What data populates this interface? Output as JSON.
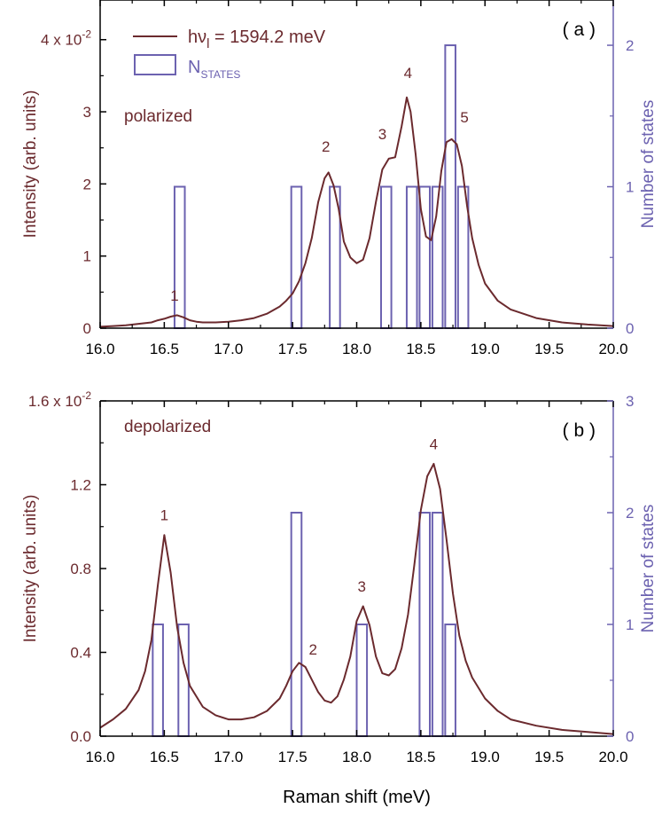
{
  "colors": {
    "curve": "#6b2a2e",
    "bars": "#6c62b0",
    "axis": "#000000"
  },
  "chart_data": [
    {
      "type": "line",
      "panel_label": "( a )",
      "annotation": "polarized",
      "legend": {
        "line_label_main": "hν",
        "line_label_sub": "l",
        "line_label_rest": " = 1594.2 meV",
        "bar_label_main": "N",
        "bar_label_sub": "STATES"
      },
      "xlabel": "",
      "ylabel": "Intensity (arb. units)",
      "ylabel_right": "Number of states",
      "xlim": [
        16.0,
        20.0
      ],
      "ylim": [
        0,
        0.0455
      ],
      "ylim_right": [
        0,
        2.32
      ],
      "x_ticks": [
        "16.0",
        "16.5",
        "17.0",
        "17.5",
        "18.0",
        "18.5",
        "19.0",
        "19.5",
        "20.0"
      ],
      "y_ticks": [
        "0",
        "1",
        "2",
        "3"
      ],
      "y_top_tick": {
        "mantissa": "4 x 10",
        "exponent": "-2",
        "value": 0.04
      },
      "y_ticks_right": [
        "0",
        "1",
        "2"
      ],
      "series": [
        {
          "name": "intensity",
          "x": [
            16.0,
            16.1,
            16.2,
            16.3,
            16.4,
            16.45,
            16.5,
            16.55,
            16.6,
            16.65,
            16.7,
            16.75,
            16.8,
            16.9,
            17.0,
            17.1,
            17.2,
            17.3,
            17.4,
            17.45,
            17.5,
            17.55,
            17.6,
            17.65,
            17.7,
            17.75,
            17.78,
            17.82,
            17.86,
            17.9,
            17.95,
            18.0,
            18.05,
            18.1,
            18.15,
            18.2,
            18.25,
            18.3,
            18.35,
            18.39,
            18.42,
            18.46,
            18.5,
            18.54,
            18.58,
            18.62,
            18.66,
            18.7,
            18.74,
            18.78,
            18.82,
            18.86,
            18.9,
            18.95,
            19.0,
            19.1,
            19.2,
            19.4,
            19.6,
            19.8,
            20.0
          ],
          "y": [
            0.0002,
            0.0003,
            0.0004,
            0.0006,
            0.0008,
            0.0011,
            0.0013,
            0.0016,
            0.0018,
            0.0015,
            0.0011,
            0.0009,
            0.0008,
            0.0008,
            0.0009,
            0.0011,
            0.0014,
            0.002,
            0.003,
            0.0038,
            0.0048,
            0.0065,
            0.009,
            0.0125,
            0.0175,
            0.0208,
            0.0216,
            0.0198,
            0.0165,
            0.012,
            0.0098,
            0.009,
            0.0095,
            0.0125,
            0.0175,
            0.022,
            0.0235,
            0.0237,
            0.028,
            0.032,
            0.03,
            0.024,
            0.0165,
            0.0127,
            0.0122,
            0.0155,
            0.0218,
            0.0258,
            0.0262,
            0.0255,
            0.0225,
            0.017,
            0.0125,
            0.0088,
            0.0062,
            0.0038,
            0.0026,
            0.0014,
            0.0008,
            0.0005,
            0.0003
          ]
        }
      ],
      "peak_labels": [
        {
          "text": "1",
          "x": 16.58,
          "y": 0.0038
        },
        {
          "text": "2",
          "x": 17.76,
          "y": 0.0245
        },
        {
          "text": "3",
          "x": 18.2,
          "y": 0.0262
        },
        {
          "text": "4",
          "x": 18.4,
          "y": 0.0347
        },
        {
          "text": "5",
          "x": 18.84,
          "y": 0.0285
        }
      ],
      "bars": [
        {
          "x1": 16.58,
          "x2": 16.66,
          "n": 1
        },
        {
          "x1": 17.49,
          "x2": 17.57,
          "n": 1
        },
        {
          "x1": 17.79,
          "x2": 17.87,
          "n": 1
        },
        {
          "x1": 18.19,
          "x2": 18.27,
          "n": 1
        },
        {
          "x1": 18.39,
          "x2": 18.47,
          "n": 1
        },
        {
          "x1": 18.49,
          "x2": 18.57,
          "n": 1
        },
        {
          "x1": 18.59,
          "x2": 18.67,
          "n": 1
        },
        {
          "x1": 18.69,
          "x2": 18.77,
          "n": 2
        },
        {
          "x1": 18.79,
          "x2": 18.87,
          "n": 1
        }
      ]
    },
    {
      "type": "line",
      "panel_label": "( b )",
      "annotation": "depolarized",
      "xlabel": "Raman shift (meV)",
      "ylabel": "Intensity (arb. units)",
      "ylabel_right": "Number of states",
      "xlim": [
        16.0,
        20.0
      ],
      "ylim": [
        0,
        0.016
      ],
      "ylim_right": [
        0,
        3.0
      ],
      "x_ticks": [
        "16.0",
        "16.5",
        "17.0",
        "17.5",
        "18.0",
        "18.5",
        "19.0",
        "19.5",
        "20.0"
      ],
      "y_ticks": [
        "0.0",
        "0.4",
        "0.8",
        "1.2"
      ],
      "y_top_tick": {
        "mantissa": "1.6 x 10",
        "exponent": "-2",
        "value": 0.016
      },
      "y_ticks_right": [
        "0",
        "1",
        "2",
        "3"
      ],
      "series": [
        {
          "name": "intensity",
          "x": [
            16.0,
            16.1,
            16.2,
            16.3,
            16.35,
            16.4,
            16.45,
            16.5,
            16.55,
            16.6,
            16.65,
            16.7,
            16.8,
            16.9,
            17.0,
            17.1,
            17.2,
            17.3,
            17.4,
            17.45,
            17.5,
            17.55,
            17.6,
            17.65,
            17.7,
            17.75,
            17.8,
            17.85,
            17.9,
            17.95,
            18.0,
            18.05,
            18.1,
            18.15,
            18.2,
            18.25,
            18.3,
            18.35,
            18.4,
            18.45,
            18.5,
            18.55,
            18.6,
            18.65,
            18.7,
            18.75,
            18.8,
            18.85,
            18.9,
            19.0,
            19.1,
            19.2,
            19.4,
            19.6,
            19.8,
            20.0
          ],
          "y": [
            0.0004,
            0.0008,
            0.0013,
            0.0022,
            0.0031,
            0.0046,
            0.0072,
            0.0096,
            0.0078,
            0.0052,
            0.0035,
            0.0024,
            0.0014,
            0.001,
            0.0008,
            0.0008,
            0.0009,
            0.0012,
            0.0018,
            0.0024,
            0.0031,
            0.0035,
            0.0033,
            0.0027,
            0.0021,
            0.0017,
            0.0016,
            0.0019,
            0.0027,
            0.0038,
            0.0055,
            0.0062,
            0.0053,
            0.0038,
            0.003,
            0.0029,
            0.0032,
            0.0042,
            0.0058,
            0.0082,
            0.0108,
            0.0124,
            0.013,
            0.0118,
            0.0094,
            0.0068,
            0.0048,
            0.0036,
            0.0028,
            0.0018,
            0.0012,
            0.0008,
            0.0005,
            0.0003,
            0.0002,
            0.0001
          ]
        }
      ],
      "peak_labels": [
        {
          "text": "1",
          "x": 16.5,
          "y": 0.0103
        },
        {
          "text": "2",
          "x": 17.66,
          "y": 0.0039
        },
        {
          "text": "3",
          "x": 18.04,
          "y": 0.0069
        },
        {
          "text": "4",
          "x": 18.6,
          "y": 0.0137
        }
      ],
      "bars": [
        {
          "x1": 16.41,
          "x2": 16.49,
          "n": 1
        },
        {
          "x1": 16.61,
          "x2": 16.69,
          "n": 1
        },
        {
          "x1": 17.49,
          "x2": 17.57,
          "n": 2
        },
        {
          "x1": 18.0,
          "x2": 18.08,
          "n": 1
        },
        {
          "x1": 18.49,
          "x2": 18.57,
          "n": 2
        },
        {
          "x1": 18.59,
          "x2": 18.67,
          "n": 2
        },
        {
          "x1": 18.69,
          "x2": 18.77,
          "n": 1
        }
      ]
    }
  ]
}
